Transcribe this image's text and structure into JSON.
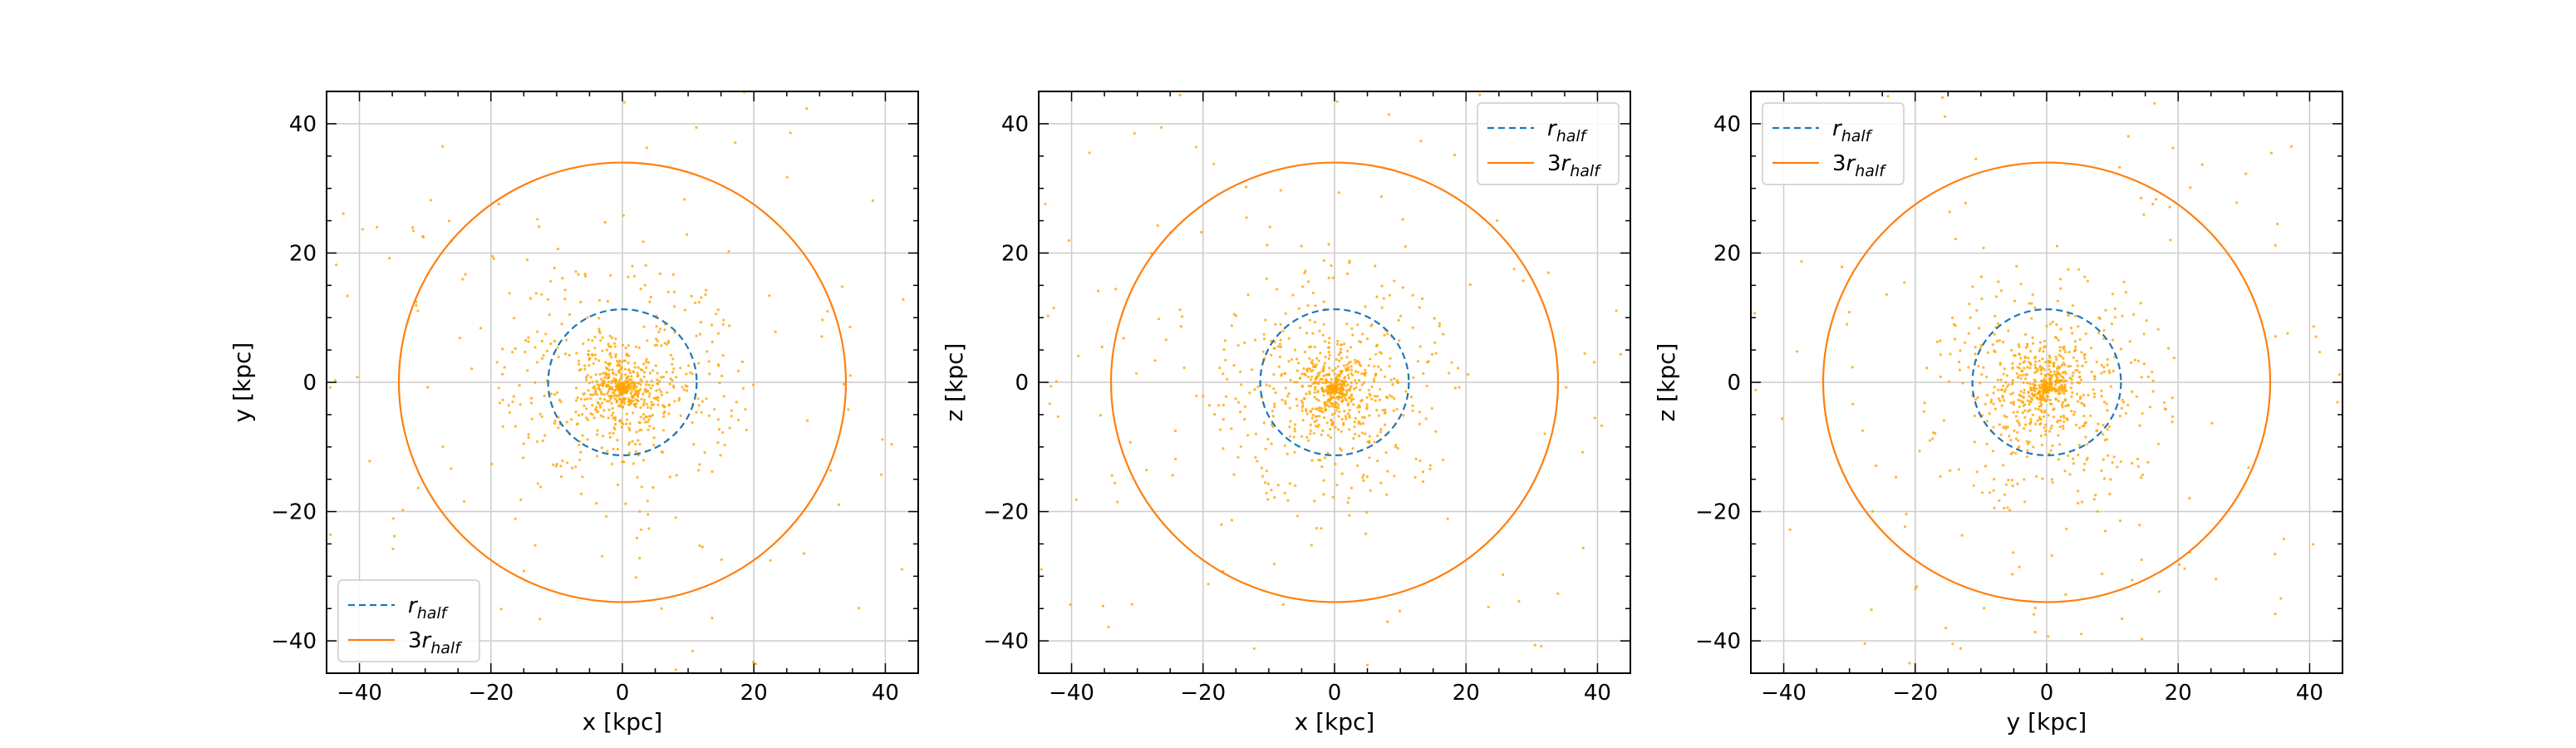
{
  "colors": {
    "points": "#FFA500",
    "rhalf_line": "#1f77b4",
    "three_rhalf_line": "#ff7f0e",
    "grid": "#cccccc"
  },
  "chart_data": [
    {
      "type": "scatter",
      "xlabel": "x [kpc]",
      "ylabel": "y [kpc]",
      "xlim": [
        -45,
        45
      ],
      "ylim": [
        -45,
        45
      ],
      "xticks": [
        -40,
        -20,
        0,
        20,
        40
      ],
      "yticks": [
        -40,
        -20,
        0,
        20,
        40
      ],
      "grid": true,
      "legend_loc": "lower-left",
      "legend": [
        {
          "base": "r",
          "sub": "half",
          "style": "dashed"
        },
        {
          "base": "3r",
          "sub": "half",
          "style": "solid"
        }
      ],
      "r_half": 11.3,
      "r_3half": 34.0,
      "n_points": 900
    },
    {
      "type": "scatter",
      "xlabel": "x [kpc]",
      "ylabel": "z [kpc]",
      "xlim": [
        -45,
        45
      ],
      "ylim": [
        -45,
        45
      ],
      "xticks": [
        -40,
        -20,
        0,
        20,
        40
      ],
      "yticks": [
        -40,
        -20,
        0,
        20,
        40
      ],
      "grid": true,
      "legend_loc": "upper-right",
      "legend": [
        {
          "base": "r",
          "sub": "half",
          "style": "dashed"
        },
        {
          "base": "3r",
          "sub": "half",
          "style": "solid"
        }
      ],
      "r_half": 11.3,
      "r_3half": 34.0,
      "n_points": 900
    },
    {
      "type": "scatter",
      "xlabel": "y [kpc]",
      "ylabel": "z [kpc]",
      "xlim": [
        -45,
        45
      ],
      "ylim": [
        -45,
        45
      ],
      "xticks": [
        -40,
        -20,
        0,
        20,
        40
      ],
      "yticks": [
        -40,
        -20,
        0,
        20,
        40
      ],
      "grid": true,
      "legend_loc": "upper-left",
      "legend": [
        {
          "base": "r",
          "sub": "half",
          "style": "dashed"
        },
        {
          "base": "3r",
          "sub": "half",
          "style": "solid"
        }
      ],
      "r_half": 11.3,
      "r_3half": 34.0,
      "n_points": 900
    }
  ]
}
